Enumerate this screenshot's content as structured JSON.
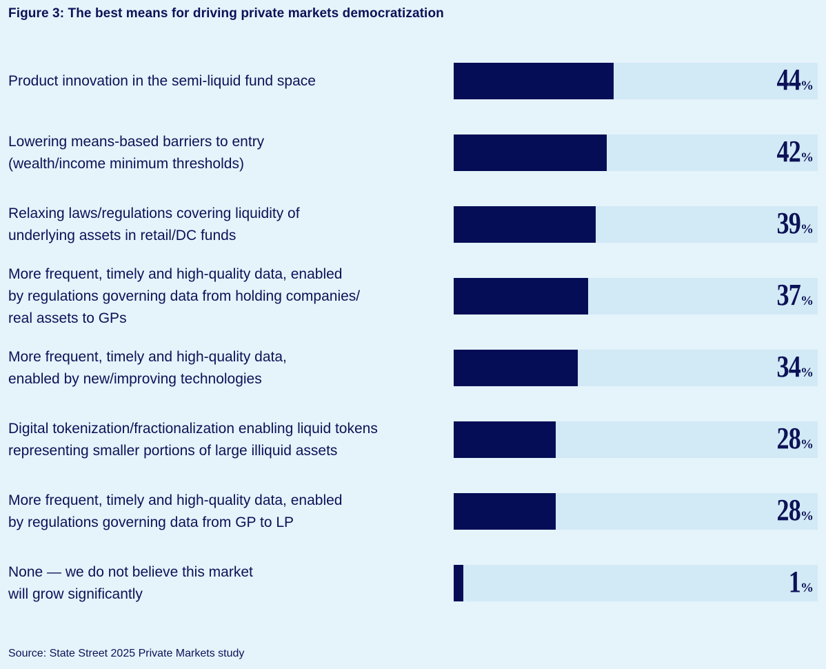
{
  "title": "Figure 3: The best means for driving private markets democratization",
  "source": "Source: State Street 2025 Private Markets study",
  "colors": {
    "background": "#e5f3fb",
    "bar_fill": "#040d55",
    "bar_track": "#d2e9f6",
    "text": "#0b1256"
  },
  "chart_data": {
    "type": "bar",
    "orientation": "horizontal",
    "title": "Figure 3: The best means for driving private markets democratization",
    "xlabel": "",
    "ylabel": "",
    "xlim": [
      0,
      100
    ],
    "unit": "%",
    "categories": [
      "Product innovation in the semi-liquid fund space",
      "Lowering means-based barriers to entry\n(wealth/income minimum thresholds)",
      "Relaxing laws/regulations covering liquidity of\nunderlying assets in retail/DC funds",
      "More frequent, timely and high-quality data, enabled\nby regulations governing data from holding companies/\nreal assets to GPs",
      "More frequent, timely and high-quality data,\nenabled by new/improving technologies",
      "Digital tokenization/fractionalization enabling liquid tokens\nrepresenting smaller portions of large illiquid assets",
      "More frequent, timely and high-quality data, enabled\nby regulations governing data from GP to LP",
      "None — we do not believe this market\nwill grow significantly"
    ],
    "values": [
      44,
      42,
      39,
      37,
      34,
      28,
      28,
      1
    ]
  }
}
